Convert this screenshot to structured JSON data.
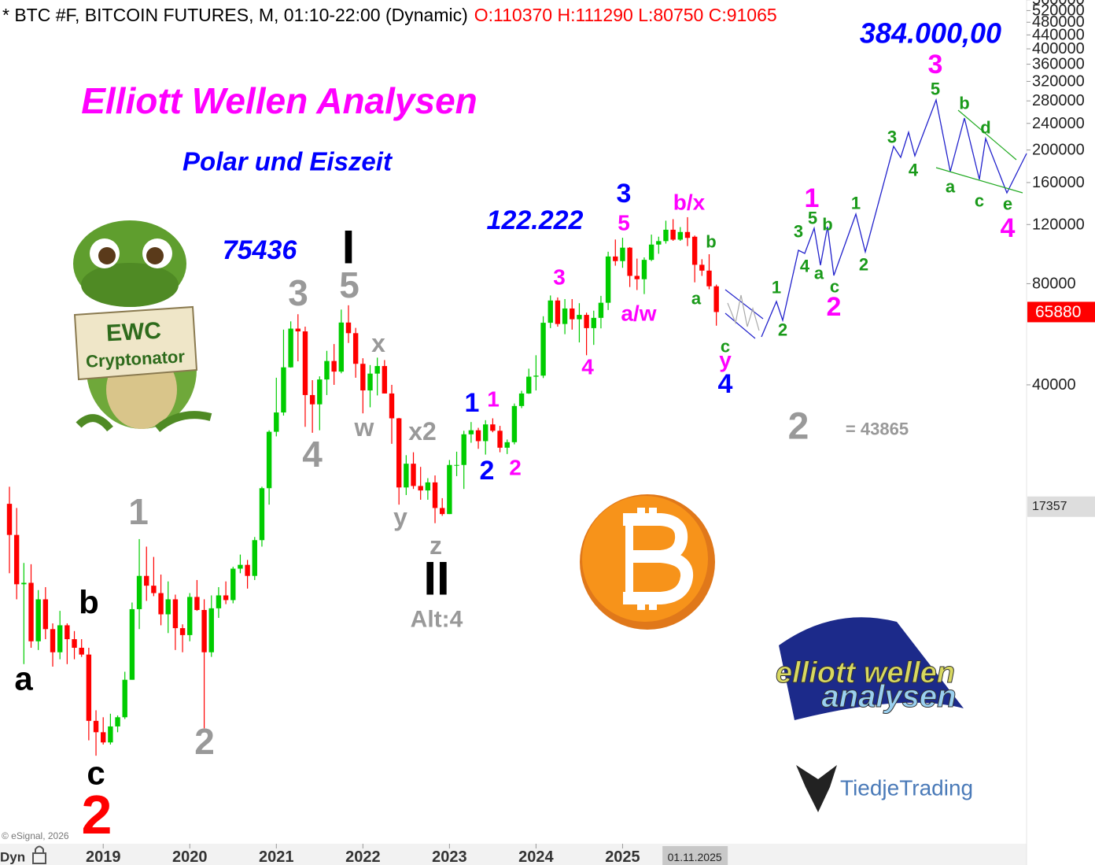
{
  "chart_data": {
    "type": "candlestick",
    "title": "* BTC #F, BITCOIN FUTURES, M, 01:10-22:00 (Dynamic)",
    "ohlc_label": "O:110370 H:111290 L:80750 C:91065",
    "log_scale": true,
    "up_color": "#00cc00",
    "down_color": "#ff0000",
    "categories": [
      "2017-12",
      "2018-01",
      "2018-02",
      "2018-03",
      "2018-04",
      "2018-05",
      "2018-06",
      "2018-07",
      "2018-08",
      "2018-09",
      "2018-10",
      "2018-11",
      "2018-12",
      "2019-01",
      "2019-02",
      "2019-03",
      "2019-04",
      "2019-05",
      "2019-06",
      "2019-07",
      "2019-08",
      "2019-09",
      "2019-10",
      "2019-11",
      "2019-12",
      "2020-01",
      "2020-02",
      "2020-03",
      "2020-04",
      "2020-05",
      "2020-06",
      "2020-07",
      "2020-08",
      "2020-09",
      "2020-10",
      "2020-11",
      "2020-12",
      "2021-01",
      "2021-02",
      "2021-03",
      "2021-04",
      "2021-05",
      "2021-06",
      "2021-07",
      "2021-08",
      "2021-09",
      "2021-10",
      "2021-11",
      "2021-12",
      "2022-01",
      "2022-02",
      "2022-03",
      "2022-04",
      "2022-05",
      "2022-06",
      "2022-07",
      "2022-08",
      "2022-09",
      "2022-10",
      "2022-11",
      "2022-12",
      "2023-01",
      "2023-02",
      "2023-03",
      "2023-04",
      "2023-05",
      "2023-06",
      "2023-07",
      "2023-08",
      "2023-09",
      "2023-10",
      "2023-11",
      "2023-12",
      "2024-01",
      "2024-02",
      "2024-03",
      "2024-04",
      "2024-05",
      "2024-06",
      "2024-07",
      "2024-08",
      "2024-09",
      "2024-10",
      "2024-11",
      "2024-12",
      "2025-01",
      "2025-02",
      "2025-03",
      "2025-04",
      "2025-05",
      "2025-06",
      "2025-07",
      "2025-08",
      "2025-09",
      "2025-10",
      "2025-11",
      "2025-12",
      "2026-01",
      "2026-02"
    ],
    "open": [
      17700,
      14300,
      10200,
      10300,
      6900,
      9200,
      7500,
      6400,
      7700,
      7000,
      6600,
      6300,
      4000,
      3700,
      3450,
      3850,
      4100,
      5300,
      8600,
      10800,
      10100,
      9600,
      8300,
      9200,
      7550,
      7200,
      9350,
      8550,
      6400,
      8650,
      9450,
      9150,
      11350,
      11650,
      10800,
      13800,
      19700,
      29000,
      33100,
      45100,
      58800,
      57700,
      37300,
      35000,
      41500,
      47100,
      43800,
      61300,
      57000,
      46200,
      38500,
      43200,
      45500,
      37700,
      31800,
      19800,
      23300,
      20000,
      19400,
      20500,
      17200,
      16500,
      23100,
      23100,
      28500,
      29300,
      27200,
      30500,
      29200,
      26000,
      27000,
      34600,
      37700,
      42300,
      42600,
      61200,
      71300,
      60700,
      67500,
      62700,
      64600,
      59000,
      63300,
      70200,
      96400,
      93400,
      102400,
      84400,
      82500,
      94200,
      104600,
      107100,
      115800,
      108200,
      114000,
      110370,
      91065,
      87500,
      78600
    ],
    "high": [
      19900,
      17200,
      11800,
      11700,
      9800,
      10000,
      7800,
      8500,
      7800,
      7400,
      7000,
      6600,
      4300,
      4100,
      4200,
      4150,
      5600,
      9000,
      13900,
      13200,
      12300,
      10900,
      10400,
      9500,
      7750,
      9600,
      10500,
      9200,
      9450,
      10000,
      10400,
      11500,
      12500,
      12050,
      14100,
      19900,
      29300,
      42000,
      58400,
      61800,
      64900,
      59600,
      41300,
      42400,
      50500,
      52900,
      67000,
      69000,
      59100,
      48000,
      45800,
      48200,
      47400,
      40000,
      31900,
      24700,
      25200,
      22800,
      21100,
      21500,
      18400,
      23900,
      25300,
      29200,
      31000,
      29800,
      31400,
      31800,
      30200,
      27500,
      35200,
      38400,
      44700,
      49000,
      64000,
      73800,
      72800,
      72000,
      72000,
      70000,
      65600,
      66500,
      73600,
      99600,
      108300,
      109600,
      102800,
      95000,
      95800,
      112000,
      110400,
      123200,
      124500,
      117900,
      126200,
      111290,
      94600,
      97900,
      79500
    ],
    "low": [
      11000,
      9200,
      5900,
      6600,
      6500,
      7000,
      5800,
      6100,
      5900,
      6100,
      6200,
      3500,
      3150,
      3400,
      3400,
      3700,
      4050,
      5300,
      7500,
      9100,
      9400,
      7700,
      7300,
      6500,
      6400,
      6900,
      8500,
      3800,
      6200,
      8100,
      8900,
      8950,
      11000,
      9900,
      10500,
      13200,
      17600,
      28100,
      32400,
      45000,
      47000,
      30000,
      28800,
      29300,
      37300,
      40000,
      43300,
      53300,
      42000,
      32900,
      34300,
      37200,
      37700,
      26700,
      17600,
      18800,
      19600,
      18200,
      18200,
      15500,
      16300,
      16500,
      21400,
      19600,
      26900,
      25800,
      24800,
      28900,
      25200,
      24900,
      26600,
      34100,
      37600,
      38500,
      41900,
      59000,
      59600,
      56600,
      58400,
      53500,
      49000,
      52600,
      58900,
      66800,
      90500,
      89200,
      78200,
      76600,
      74500,
      93400,
      98200,
      105300,
      107300,
      107300,
      103500,
      80750,
      84400,
      77000,
      60000
    ],
    "close": [
      14300,
      10200,
      10300,
      6900,
      9200,
      7500,
      6400,
      7700,
      7000,
      6600,
      6300,
      4000,
      3700,
      3450,
      3850,
      4100,
      5300,
      8600,
      10800,
      10100,
      9600,
      8300,
      9200,
      7550,
      7200,
      9350,
      8550,
      6400,
      8650,
      9450,
      9150,
      11350,
      11650,
      10800,
      13800,
      19700,
      29000,
      33100,
      45100,
      58800,
      57700,
      37300,
      35000,
      41500,
      47100,
      43800,
      61300,
      57000,
      46200,
      38500,
      43200,
      45500,
      37700,
      31800,
      19800,
      23300,
      20000,
      19400,
      20500,
      17200,
      16500,
      23100,
      23100,
      28500,
      29300,
      27200,
      30500,
      29200,
      26000,
      27000,
      34600,
      37700,
      42300,
      42600,
      61200,
      71300,
      60700,
      67500,
      62700,
      64600,
      59000,
      63300,
      70200,
      96400,
      93400,
      102400,
      84400,
      82500,
      94200,
      104600,
      107100,
      115800,
      108200,
      114000,
      109500,
      91065,
      87500,
      78600,
      65880
    ],
    "ylim": [
      1723,
      559000
    ],
    "yticks": [
      40000,
      80000,
      120000,
      160000,
      200000,
      240000,
      280000,
      320000,
      360000,
      400000,
      440000,
      480000,
      520000,
      560000
    ],
    "xticks": [
      {
        "value": "2019-01",
        "label": "2019"
      },
      {
        "value": "2020-01",
        "label": "2020"
      },
      {
        "value": "2021-01",
        "label": "2021"
      },
      {
        "value": "2022-01",
        "label": "2022"
      },
      {
        "value": "2023-01",
        "label": "2023"
      },
      {
        "value": "2024-01",
        "label": "2024"
      },
      {
        "value": "2025-01",
        "label": "2025"
      }
    ],
    "cursor_date": {
      "value": "2025-11",
      "label": "01.11.2025"
    },
    "price_markers": [
      {
        "value": 65880,
        "color": "#ff0000",
        "text_color": "#ffffff"
      },
      {
        "value": 17357,
        "color": "#dddddd",
        "text_color": "#222222"
      }
    ],
    "annotations": [
      {
        "text": "384.000,00",
        "color": "#0000ff"
      },
      {
        "text": "Elliott Wellen Analysen",
        "color": "#ff00ff"
      },
      {
        "text": "Polar und Eiszeit",
        "color": "#0000ff"
      },
      {
        "text": "75436",
        "color": "#0000ff"
      },
      {
        "text": "122.222",
        "color": "#0000ff"
      },
      {
        "text": "= 43865",
        "color": "#999999"
      },
      {
        "text": "Alt:4",
        "color": "#999999"
      },
      {
        "text": "a",
        "color": "#000000"
      },
      {
        "text": "b",
        "color": "#000000"
      },
      {
        "text": "c",
        "color": "#000000"
      },
      {
        "text": "2",
        "color": "#ff0000"
      },
      {
        "text": "1",
        "color": "#999999"
      },
      {
        "text": "2",
        "color": "#999999"
      },
      {
        "text": "3",
        "color": "#999999"
      },
      {
        "text": "4",
        "color": "#999999"
      },
      {
        "text": "5",
        "color": "#999999"
      },
      {
        "text": "x",
        "color": "#999999"
      },
      {
        "text": "w",
        "color": "#999999"
      },
      {
        "text": "x2",
        "color": "#999999"
      },
      {
        "text": "y",
        "color": "#999999"
      },
      {
        "text": "z",
        "color": "#999999"
      },
      {
        "text": "2",
        "color": "#999999"
      },
      {
        "text": "I",
        "color": "#000000"
      },
      {
        "text": "II",
        "color": "#000000"
      },
      {
        "text": "1",
        "color": "#0000ff"
      },
      {
        "text": "2",
        "color": "#0000ff"
      },
      {
        "text": "3",
        "color": "#0000ff"
      },
      {
        "text": "4",
        "color": "#0000ff"
      },
      {
        "text": "1",
        "color": "#ff00ff"
      },
      {
        "text": "2",
        "color": "#ff00ff"
      },
      {
        "text": "3",
        "color": "#ff00ff"
      },
      {
        "text": "4",
        "color": "#ff00ff"
      },
      {
        "text": "5",
        "color": "#ff00ff"
      },
      {
        "text": "a/w",
        "color": "#ff00ff"
      },
      {
        "text": "b/x",
        "color": "#ff00ff"
      },
      {
        "text": "y",
        "color": "#ff00ff"
      },
      {
        "text": "1",
        "color": "#ff00ff"
      },
      {
        "text": "2",
        "color": "#ff00ff"
      },
      {
        "text": "3",
        "color": "#ff00ff"
      },
      {
        "text": "4",
        "color": "#ff00ff"
      },
      {
        "text": "a",
        "color": "#1a9a1a"
      },
      {
        "text": "b",
        "color": "#1a9a1a"
      },
      {
        "text": "c",
        "color": "#1a9a1a"
      },
      {
        "text": "1",
        "color": "#1a9a1a"
      },
      {
        "text": "2",
        "color": "#1a9a1a"
      },
      {
        "text": "3",
        "color": "#1a9a1a"
      },
      {
        "text": "4",
        "color": "#1a9a1a"
      },
      {
        "text": "5",
        "color": "#1a9a1a"
      },
      {
        "text": "a",
        "color": "#1a9a1a"
      },
      {
        "text": "b",
        "color": "#1a9a1a"
      },
      {
        "text": "c",
        "color": "#1a9a1a"
      },
      {
        "text": "1",
        "color": "#1a9a1a"
      },
      {
        "text": "2",
        "color": "#1a9a1a"
      },
      {
        "text": "3",
        "color": "#1a9a1a"
      },
      {
        "text": "4",
        "color": "#1a9a1a"
      },
      {
        "text": "5",
        "color": "#1a9a1a"
      },
      {
        "text": "b",
        "color": "#1a9a1a"
      },
      {
        "text": "d",
        "color": "#1a9a1a"
      },
      {
        "text": "a",
        "color": "#1a9a1a"
      },
      {
        "text": "c",
        "color": "#1a9a1a"
      },
      {
        "text": "e",
        "color": "#1a9a1a"
      }
    ]
  },
  "logos": {
    "mascot_top": "EWC",
    "mascot_bottom": "Cryptonator",
    "ewa_top": "elliott wellen",
    "ewa_bottom": "analysen",
    "tiedje": "TiedjeTrading"
  },
  "footer": {
    "copyright": "© eSignal, 2026",
    "mode": "Dyn"
  }
}
